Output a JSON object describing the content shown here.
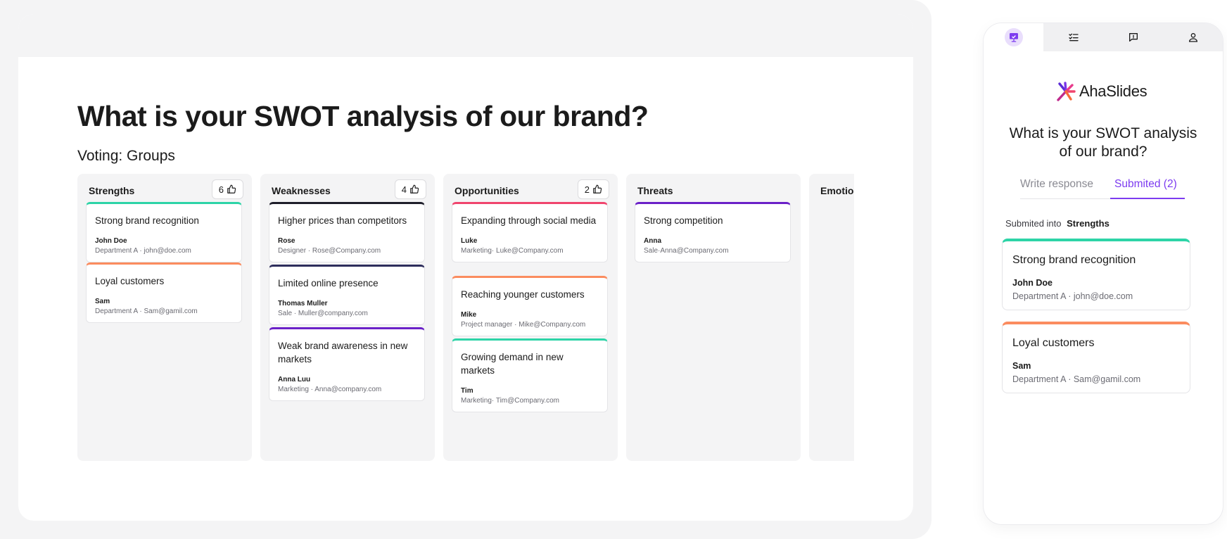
{
  "presenter": {
    "title": "What is your SWOT analysis of our brand?",
    "subtitle": "Voting: Groups"
  },
  "columns": [
    {
      "name": "Strengths",
      "votes": "6",
      "cards": [
        {
          "text": "Strong brand recognition",
          "author": "John Doe",
          "meta": "Department A · john@doe.com",
          "color": "#2dd4a7"
        },
        {
          "text": "Loyal customers",
          "author": "Sam",
          "meta": "Department A · Sam@gamil.com",
          "color": "#fb8c5f"
        }
      ]
    },
    {
      "name": "Weaknesses",
      "votes": "4",
      "cards": [
        {
          "text": "Higher prices than competitors",
          "author": "Rose",
          "meta": "Designer · Rose@Company.com",
          "color": "#1f1f2b"
        },
        {
          "text": "Limited online presence",
          "author": "Thomas Muller",
          "meta": "Sale · Muller@company.com",
          "color": "#2e2e5c"
        },
        {
          "text": "Weak brand awareness in new markets",
          "author": "Anna Luu",
          "meta": "Marketing · Anna@company.com",
          "color": "#6b21c8"
        }
      ]
    },
    {
      "name": "Opportunities",
      "votes": "2",
      "cards": [
        {
          "text": "Expanding through social media",
          "author": "Luke",
          "meta": "Marketing· Luke@Company.com",
          "color": "#f0456e"
        },
        {
          "text": "Reaching younger customers",
          "author": "Mike",
          "meta": "Project manager · Mike@Company.com",
          "color": "#fb8c5f"
        },
        {
          "text": "Growing demand in new markets",
          "author": "Tim",
          "meta": "Marketing· Tim@Company.com",
          "color": "#2dd4a7"
        }
      ]
    },
    {
      "name": "Threats",
      "votes": "",
      "cards": [
        {
          "text": "Strong competition",
          "author": "Anna",
          "meta": "Sale·Anna@Company.com",
          "color": "#6b21c8"
        }
      ]
    },
    {
      "name": "Emotion",
      "votes": "",
      "cards": []
    }
  ],
  "phone": {
    "tabs": [
      {
        "icon": "presentation-icon",
        "active": true
      },
      {
        "icon": "checklist-icon",
        "active": false
      },
      {
        "icon": "chat-icon",
        "active": false
      },
      {
        "icon": "user-icon",
        "active": false
      }
    ],
    "brand": "AhaSlides",
    "question": "What is your SWOT analysis of our brand?",
    "write_tab": "Write response",
    "submitted_tab": "Submited (2)",
    "submitted_into_label": "Submited into",
    "submitted_into_value": "Strengths",
    "cards": [
      {
        "text": "Strong brand recognition",
        "author": "John Doe",
        "meta": "Department A · john@doe.com",
        "color": "#2dd4a7"
      },
      {
        "text": "Loyal customers",
        "author": "Sam",
        "meta": "Department A · Sam@gamil.com",
        "color": "#fb8c5f"
      }
    ],
    "accent": "#7d3cf0"
  }
}
